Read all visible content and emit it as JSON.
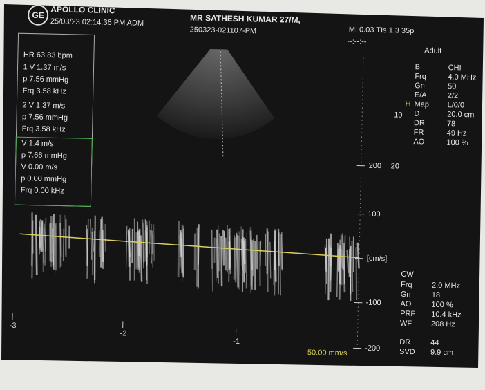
{
  "header": {
    "logo": "GE",
    "clinic": "APOLLO CLINIC",
    "datetime": "25/03/23 02:14:36 PM ADM",
    "patient": "MR SATHESH KUMAR 27/M,",
    "exam_id": "250323-021107-PM",
    "index": "MI 0.03 TIs 1.3 35p",
    "status": "--:--:--",
    "preset": "Adult"
  },
  "measurements": {
    "hr": "HR 63.83 bpm",
    "groups": [
      [
        "1 V 1.37 m/s",
        "p 7.56 mmHg",
        "Frq 3.58 kHz"
      ],
      [
        "2 V 1.37 m/s",
        "p 7.56 mmHg",
        "Frq 3.58 kHz"
      ],
      [
        "V 1.4 m/s",
        "p 7.66 mmHg",
        "V 0.00 m/s",
        "p 0.00 mmHg",
        "Frq 0.00 kHz"
      ]
    ]
  },
  "b_mode": [
    [
      "B",
      "CHI"
    ],
    [
      "Frq",
      "4.0 MHz"
    ],
    [
      "Gn",
      "50"
    ],
    [
      "E/A",
      "2/2"
    ],
    [
      "Map",
      "L/0/0"
    ],
    [
      "D",
      "20.0 cm"
    ],
    [
      "DR",
      "78"
    ],
    [
      "FR",
      "49 Hz"
    ],
    [
      "AO",
      "100 %"
    ]
  ],
  "cw_mode": {
    "title": "CW",
    "rows": [
      [
        "Frq",
        "2.0 MHz"
      ],
      [
        "Gn",
        "18"
      ],
      [
        "AO",
        "100 %"
      ],
      [
        "PRF",
        "10.4 kHz"
      ],
      [
        "WF",
        "208 Hz"
      ]
    ],
    "extra": [
      [
        "DR",
        "44"
      ],
      [
        "SVD",
        "9.9 cm"
      ]
    ]
  },
  "depth_marks": [
    "20",
    "10"
  ],
  "focus": "H",
  "velocity_scale": [
    "200",
    "100",
    "[cm/s]",
    "-100",
    "-200"
  ],
  "time_axis": [
    "-3",
    "-2",
    "-1"
  ],
  "sweep_speed": "50.00 mm/s"
}
